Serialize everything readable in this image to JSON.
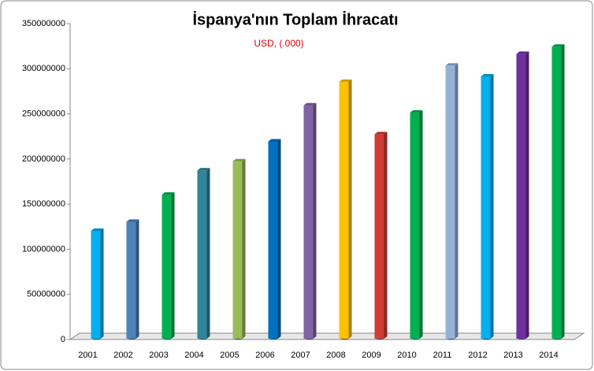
{
  "chart_data": {
    "type": "bar3d",
    "title": "İspanya'nın Toplam İhracatı",
    "subtitle": "USD, (.000)",
    "categories": [
      "2001",
      "2002",
      "2003",
      "2004",
      "2005",
      "2006",
      "2007",
      "2008",
      "2009",
      "2010",
      "2011",
      "2012",
      "2013",
      "2014"
    ],
    "values": [
      117000000,
      127000000,
      157000000,
      184000000,
      194000000,
      216000000,
      256000000,
      282000000,
      224000000,
      248000000,
      300000000,
      288000000,
      313000000,
      321000000
    ],
    "colors": [
      "#00b0f0",
      "#4f81bd",
      "#00b050",
      "#31849b",
      "#9bbb59",
      "#0070c0",
      "#8064a2",
      "#ffc000",
      "#d13b36",
      "#00b050",
      "#95b3d7",
      "#00b0f0",
      "#7030a0",
      "#00b050"
    ],
    "ylim": [
      0,
      350000000
    ],
    "yticks": [
      0,
      50000000,
      100000000,
      150000000,
      200000000,
      250000000,
      300000000,
      350000000
    ],
    "grid": false
  }
}
